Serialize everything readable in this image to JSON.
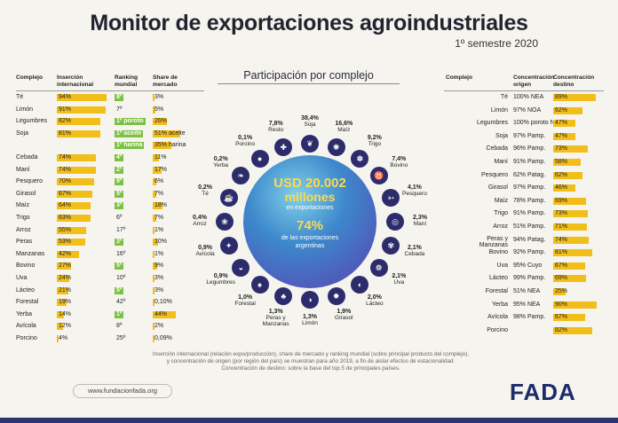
{
  "title": "Monitor de exportaciones agroindustriales",
  "subtitle": "1º semestre 2020",
  "left_table": {
    "headers": {
      "complejo": "Complejo",
      "insercion": "Inserción internacional",
      "ranking": "Ranking mundial",
      "share": "Share de mercado"
    },
    "rows": [
      {
        "name": "Té",
        "insercion": "94%",
        "ins_val": 94,
        "ranking": "8º",
        "rank_green": true,
        "share": "3%",
        "share_val": 3
      },
      {
        "name": "Limón",
        "insercion": "91%",
        "ins_val": 91,
        "ranking": "7º",
        "rank_green": false,
        "share": "5%",
        "share_val": 5
      },
      {
        "name": "Legumbres",
        "insercion": "82%",
        "ins_val": 82,
        "ranking": "1º poroto",
        "rank_green": true,
        "share": "26%",
        "share_val": 26
      },
      {
        "name": "Soja",
        "insercion": "81%",
        "ins_val": 81,
        "ranking": "1º aceite",
        "rank_green": true,
        "share": "51% aceite",
        "share_val": 51
      },
      {
        "name": "",
        "insercion": "",
        "ins_val": 0,
        "ranking": "1º harina",
        "rank_green": true,
        "share": "35% harina",
        "share_val": 35
      },
      {
        "name": "Cebada",
        "insercion": "74%",
        "ins_val": 74,
        "ranking": "4º",
        "rank_green": true,
        "share": "11%",
        "share_val": 11
      },
      {
        "name": "Maní",
        "insercion": "74%",
        "ins_val": 74,
        "ranking": "2º",
        "rank_green": true,
        "share": "17%",
        "share_val": 17
      },
      {
        "name": "Pesquero",
        "insercion": "70%",
        "ins_val": 70,
        "ranking": "9º",
        "rank_green": true,
        "share": "6%",
        "share_val": 6
      },
      {
        "name": "Girasol",
        "insercion": "67%",
        "ins_val": 67,
        "ranking": "5º",
        "rank_green": true,
        "share": "7%",
        "share_val": 7
      },
      {
        "name": "Maíz",
        "insercion": "64%",
        "ins_val": 64,
        "ranking": "3º",
        "rank_green": true,
        "share": "18%",
        "share_val": 18
      },
      {
        "name": "Trigo",
        "insercion": "63%",
        "ins_val": 63,
        "ranking": "6º",
        "rank_green": false,
        "share": "7%",
        "share_val": 7
      },
      {
        "name": "Arroz",
        "insercion": "55%",
        "ins_val": 55,
        "ranking": "17º",
        "rank_green": false,
        "share": "1%",
        "share_val": 1
      },
      {
        "name": "Peras",
        "insercion": "53%",
        "ins_val": 53,
        "ranking": "3º",
        "rank_green": true,
        "share": "10%",
        "share_val": 10
      },
      {
        "name": "Manzanas",
        "insercion": "42%",
        "ins_val": 42,
        "ranking": "16º",
        "rank_green": false,
        "share": "1%",
        "share_val": 1
      },
      {
        "name": "Bovino",
        "insercion": "27%",
        "ins_val": 27,
        "ranking": "5º",
        "rank_green": true,
        "share": "9%",
        "share_val": 9
      },
      {
        "name": "Uva",
        "insercion": "24%",
        "ins_val": 24,
        "ranking": "10º",
        "rank_green": false,
        "share": "3%",
        "share_val": 3
      },
      {
        "name": "Lácteo",
        "insercion": "21%",
        "ins_val": 21,
        "ranking": "5º",
        "rank_green": true,
        "share": "3%",
        "share_val": 3
      },
      {
        "name": "Forestal",
        "insercion": "19%",
        "ins_val": 19,
        "ranking": "42º",
        "rank_green": false,
        "share": "0,10%",
        "share_val": 0.1
      },
      {
        "name": "Yerba",
        "insercion": "14%",
        "ins_val": 14,
        "ranking": "1º",
        "rank_green": true,
        "share": "44%",
        "share_val": 44
      },
      {
        "name": "Avícola",
        "insercion": "12%",
        "ins_val": 12,
        "ranking": "8º",
        "rank_green": false,
        "share": "2%",
        "share_val": 2
      },
      {
        "name": "Porcino",
        "insercion": "4%",
        "ins_val": 4,
        "ranking": "25º",
        "rank_green": false,
        "share": "0,09%",
        "share_val": 0.09
      }
    ]
  },
  "center": {
    "title": "Participación por complejo",
    "amount": "USD 20.002",
    "amount_unit": "millones",
    "amount_caption": "en exportaciones",
    "pct": "74%",
    "pct_caption_1": "de las exportaciones",
    "pct_caption_2": "argentinas",
    "items": [
      {
        "pct": "38,4%",
        "name": "Soja",
        "icon": "soy-icon",
        "glyph": "❦"
      },
      {
        "pct": "16,6%",
        "name": "Maíz",
        "icon": "corn-icon",
        "glyph": "✺"
      },
      {
        "pct": "9,2%",
        "name": "Trigo",
        "icon": "wheat-icon",
        "glyph": "✽"
      },
      {
        "pct": "7,4%",
        "name": "Bovino",
        "icon": "cow-icon",
        "glyph": "♉"
      },
      {
        "pct": "4,1%",
        "name": "Pesquero",
        "icon": "fish-icon",
        "glyph": "➳"
      },
      {
        "pct": "2,3%",
        "name": "Maní",
        "icon": "peanut-icon",
        "glyph": "◎"
      },
      {
        "pct": "2,1%",
        "name": "Cebada",
        "icon": "barley-icon",
        "glyph": "✾"
      },
      {
        "pct": "2,1%",
        "name": "Uva",
        "icon": "grape-icon",
        "glyph": "❁"
      },
      {
        "pct": "2,0%",
        "name": "Lácteo",
        "icon": "milk-icon",
        "glyph": "◐"
      },
      {
        "pct": "1,9%",
        "name": "Girasol",
        "icon": "sunflower-icon",
        "glyph": "✹"
      },
      {
        "pct": "1,3%",
        "name": "Limón",
        "icon": "lemon-icon",
        "glyph": "◑"
      },
      {
        "pct": "1,3%",
        "name": "Peras y Manzanas",
        "icon": "pear-icon",
        "glyph": "♣"
      },
      {
        "pct": "1,0%",
        "name": "Forestal",
        "icon": "tree-icon",
        "glyph": "♠"
      },
      {
        "pct": "0,9%",
        "name": "Legumbres",
        "icon": "bean-icon",
        "glyph": "◒"
      },
      {
        "pct": "0,9%",
        "name": "Avícola",
        "icon": "chicken-icon",
        "glyph": "✦"
      },
      {
        "pct": "0,4%",
        "name": "Arroz",
        "icon": "rice-icon",
        "glyph": "❀"
      },
      {
        "pct": "0,2%",
        "name": "Té",
        "icon": "tea-icon",
        "glyph": "☕"
      },
      {
        "pct": "0,2%",
        "name": "Yerba",
        "icon": "yerba-icon",
        "glyph": "❧"
      },
      {
        "pct": "0,1%",
        "name": "Porcino",
        "icon": "pig-icon",
        "glyph": "●"
      },
      {
        "pct": "7,8%",
        "name": "Resto",
        "icon": "other-icon",
        "glyph": "✚"
      }
    ]
  },
  "right_table": {
    "headers": {
      "complejo": "Complejo",
      "origen": "Concentración origen",
      "destino": "Concentración destino"
    },
    "rows": [
      {
        "name": "Té",
        "origen": "100% NEA",
        "destino": "89%",
        "dest_val": 89
      },
      {
        "name": "Limón",
        "origen": "97% NOA",
        "destino": "62%",
        "dest_val": 62
      },
      {
        "name": "Legumbres",
        "origen": "100% poroto NOA",
        "destino": "47%",
        "dest_val": 47
      },
      {
        "name": "Soja",
        "origen": "97% Pamp.",
        "destino": "47%",
        "dest_val": 47
      },
      {
        "name": "Cebada",
        "origen": "96% Pamp.",
        "destino": "73%",
        "dest_val": 73
      },
      {
        "name": "Maní",
        "origen": "91% Pamp.",
        "destino": "58%",
        "dest_val": 58
      },
      {
        "name": "Pesquero",
        "origen": "62% Patag.",
        "destino": "62%",
        "dest_val": 62
      },
      {
        "name": "Girasol",
        "origen": "97% Pamp.",
        "destino": "46%",
        "dest_val": 46
      },
      {
        "name": "Maíz",
        "origen": "78% Pamp.",
        "destino": "69%",
        "dest_val": 69
      },
      {
        "name": "Trigo",
        "origen": "91% Pamp.",
        "destino": "73%",
        "dest_val": 73
      },
      {
        "name": "Arroz",
        "origen": "51% Pamp.",
        "destino": "71%",
        "dest_val": 71
      },
      {
        "name": "Peras y Manzanas",
        "origen": "94% Patag.",
        "destino": "74%",
        "dest_val": 74
      },
      {
        "name": "Bovino",
        "origen": "92% Pamp.",
        "destino": "81%",
        "dest_val": 81
      },
      {
        "name": "Uva",
        "origen": "95% Cuyo",
        "destino": "67%",
        "dest_val": 67
      },
      {
        "name": "Lácteo",
        "origen": "99% Pamp.",
        "destino": "69%",
        "dest_val": 69
      },
      {
        "name": "Forestal",
        "origen": "51% NEA",
        "destino": "25%",
        "dest_val": 25
      },
      {
        "name": "Yerba",
        "origen": "95% NEA",
        "destino": "90%",
        "dest_val": 90
      },
      {
        "name": "Avícola",
        "origen": "98% Pamp.",
        "destino": "67%",
        "dest_val": 67
      },
      {
        "name": "Porcino",
        "origen": "",
        "destino": "82%",
        "dest_val": 82
      }
    ]
  },
  "footnote": {
    "line1": "Inserción internacional (relación expo/producción), share de mercado y ranking mundial (sobre principal producto del complejo),",
    "line2": "y concentración de origen (por región del país) se muestran para año 2019, a fin de aislar efectos de estacionalidad.",
    "line3": "Concentración de destino: sobre la base del top 5 de principales países."
  },
  "url": "www.fundacionfada.org",
  "logo": "FADA",
  "colors": {
    "accent_yellow": "#f2be1a",
    "accent_green": "#7cc242",
    "navy": "#283370"
  }
}
